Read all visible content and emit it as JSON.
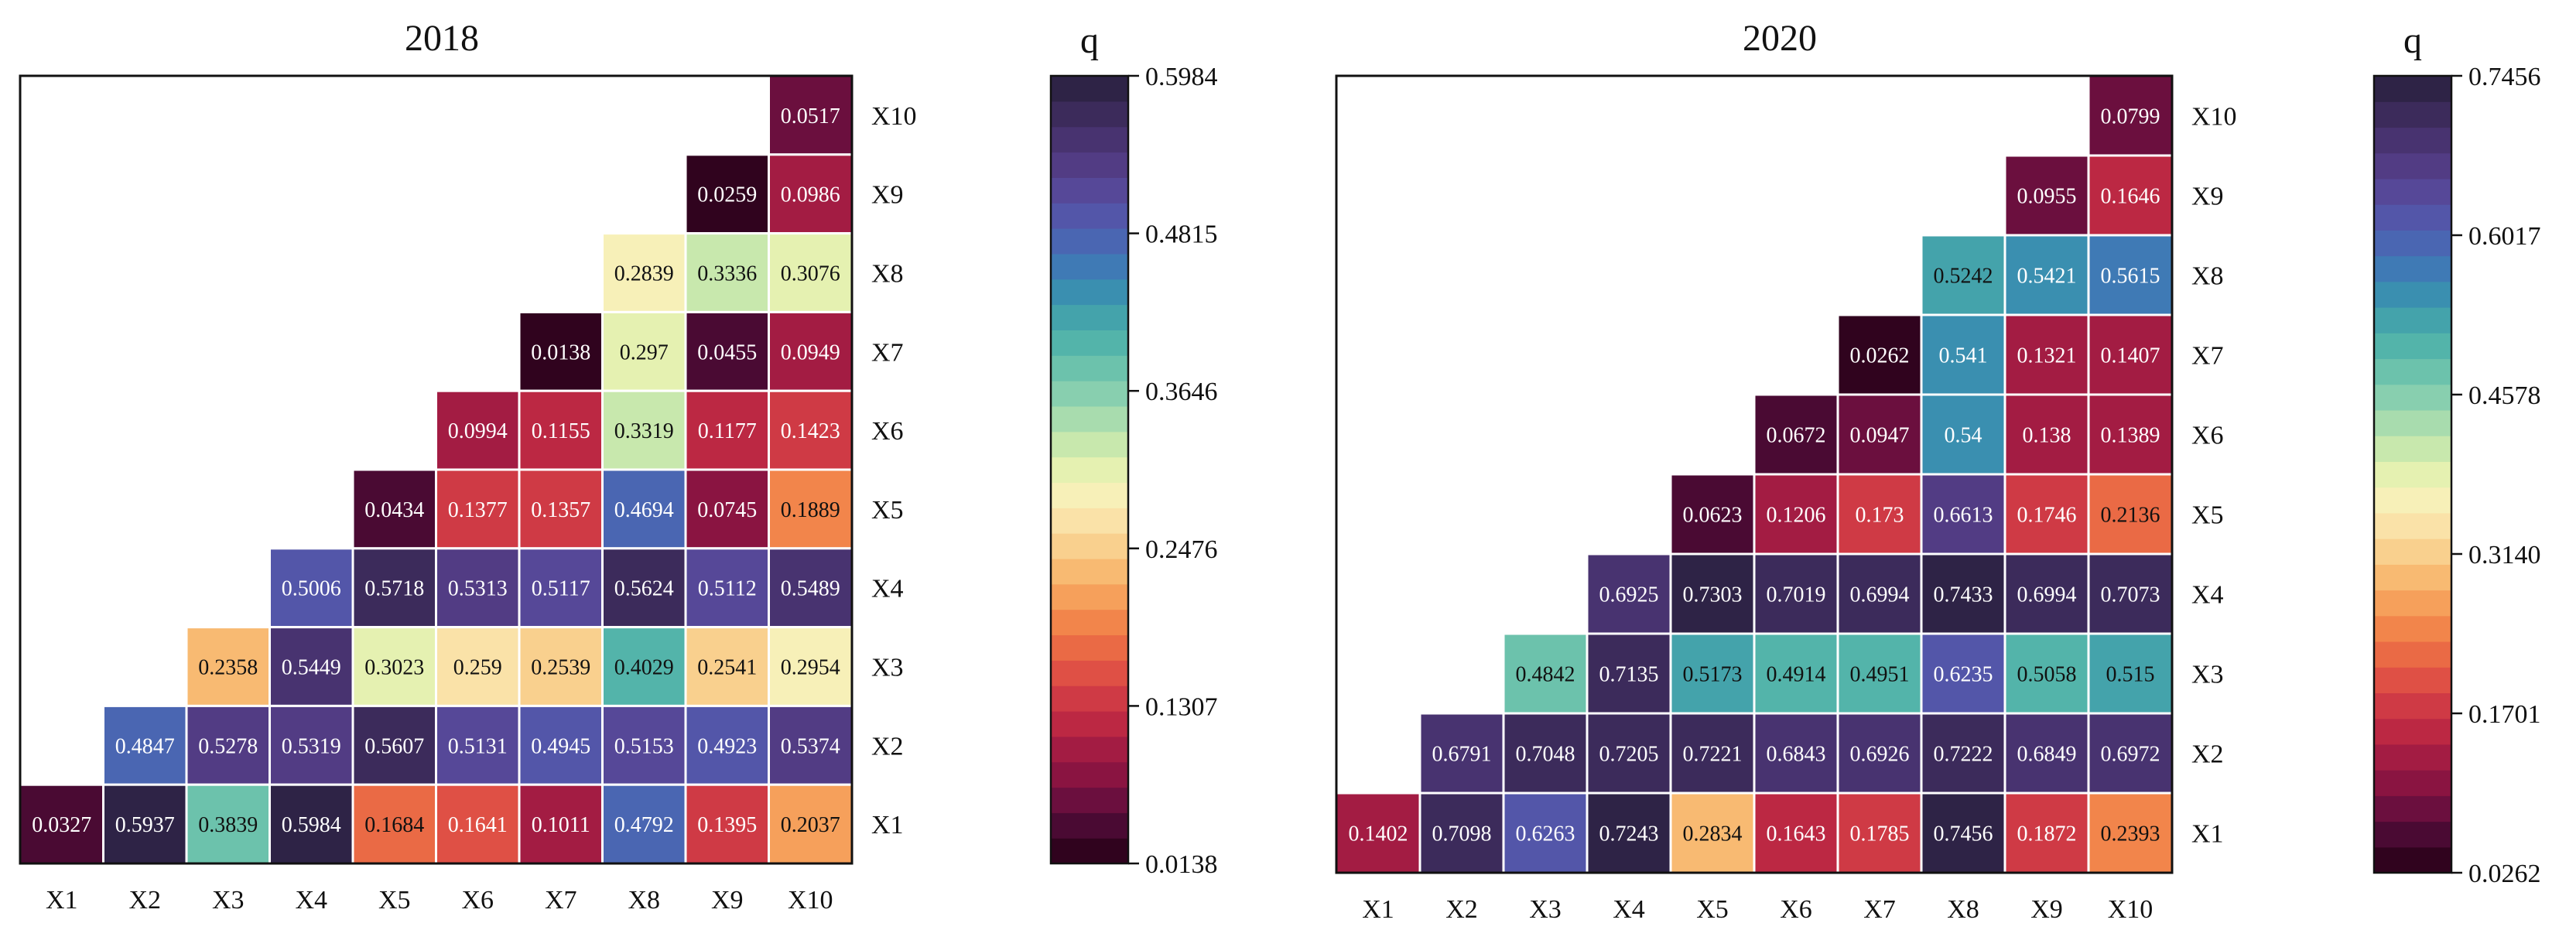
{
  "colormap": [
    "#30031e",
    "#4a0a33",
    "#6b0f3e",
    "#8a1441",
    "#a31c43",
    "#bc2843",
    "#cf3a45",
    "#df5045",
    "#ea6a45",
    "#f2854b",
    "#f6a05b",
    "#f8ba72",
    "#f9d08e",
    "#fae2a8",
    "#f7f0b8",
    "#e5f1b1",
    "#c8e8ad",
    "#a8dcae",
    "#88cfaf",
    "#6cc2ac",
    "#53b4aa",
    "#44a3ab",
    "#3a8fb0",
    "#3f7ab5",
    "#4a66b2",
    "#5356a9",
    "#564898",
    "#523c84",
    "#483370",
    "#3c2b5b",
    "#2e2346"
  ],
  "chart_data": [
    {
      "type": "heatmap",
      "title": "2018",
      "x_labels": [
        "X1",
        "X2",
        "X3",
        "X4",
        "X5",
        "X6",
        "X7",
        "X8",
        "X9",
        "X10"
      ],
      "y_labels": [
        "X10",
        "X9",
        "X8",
        "X7",
        "X6",
        "X5",
        "X4",
        "X3",
        "X2",
        "X1"
      ],
      "colorbar": {
        "label": "q",
        "min": 0.0138,
        "max": 0.5984,
        "ticks": [
          "0.5984",
          "0.4815",
          "0.3646",
          "0.2476",
          "0.1307",
          "0.0138"
        ]
      },
      "rows": [
        [
          "",
          "",
          "",
          "",
          "",
          "",
          "",
          "",
          "",
          "0.0517"
        ],
        [
          "",
          "",
          "",
          "",
          "",
          "",
          "",
          "",
          "0.0259",
          "0.0986"
        ],
        [
          "",
          "",
          "",
          "",
          "",
          "",
          "",
          "0.2839",
          "0.3336",
          "0.3076"
        ],
        [
          "",
          "",
          "",
          "",
          "",
          "",
          "0.0138",
          "0.297",
          "0.0455",
          "0.0949"
        ],
        [
          "",
          "",
          "",
          "",
          "",
          "0.0994",
          "0.1155",
          "0.3319",
          "0.1177",
          "0.1423"
        ],
        [
          "",
          "",
          "",
          "",
          "0.0434",
          "0.1377",
          "0.1357",
          "0.4694",
          "0.0745",
          "0.1889"
        ],
        [
          "",
          "",
          "",
          "0.5006",
          "0.5718",
          "0.5313",
          "0.5117",
          "0.5624",
          "0.5112",
          "0.5489"
        ],
        [
          "",
          "",
          "0.2358",
          "0.5449",
          "0.3023",
          "0.259",
          "0.2539",
          "0.4029",
          "0.2541",
          "0.2954"
        ],
        [
          "",
          "0.4847",
          "0.5278",
          "0.5319",
          "0.5607",
          "0.5131",
          "0.4945",
          "0.5153",
          "0.4923",
          "0.5374"
        ],
        [
          "0.0327",
          "0.5937",
          "0.3839",
          "0.5984",
          "0.1684",
          "0.1641",
          "0.1011",
          "0.4792",
          "0.1395",
          "0.2037"
        ]
      ]
    },
    {
      "type": "heatmap",
      "title": "2020",
      "x_labels": [
        "X1",
        "X2",
        "X3",
        "X4",
        "X5",
        "X6",
        "X7",
        "X8",
        "X9",
        "X10"
      ],
      "y_labels": [
        "X10",
        "X9",
        "X8",
        "X7",
        "X6",
        "X5",
        "X4",
        "X3",
        "X2",
        "X1"
      ],
      "colorbar": {
        "label": "q",
        "min": 0.0262,
        "max": 0.7456,
        "ticks": [
          "0.7456",
          "0.6017",
          "0.4578",
          "0.3140",
          "0.1701",
          "0.0262"
        ]
      },
      "rows": [
        [
          "",
          "",
          "",
          "",
          "",
          "",
          "",
          "",
          "",
          "0.0799"
        ],
        [
          "",
          "",
          "",
          "",
          "",
          "",
          "",
          "",
          "0.0955",
          "0.1646"
        ],
        [
          "",
          "",
          "",
          "",
          "",
          "",
          "",
          "0.5242",
          "0.5421",
          "0.5615"
        ],
        [
          "",
          "",
          "",
          "",
          "",
          "",
          "0.0262",
          "0.541",
          "0.1321",
          "0.1407"
        ],
        [
          "",
          "",
          "",
          "",
          "",
          "0.0672",
          "0.0947",
          "0.54",
          "0.138",
          "0.1389"
        ],
        [
          "",
          "",
          "",
          "",
          "0.0623",
          "0.1206",
          "0.173",
          "0.6613",
          "0.1746",
          "0.2136"
        ],
        [
          "",
          "",
          "",
          "0.6925",
          "0.7303",
          "0.7019",
          "0.6994",
          "0.7433",
          "0.6994",
          "0.7073"
        ],
        [
          "",
          "",
          "0.4842",
          "0.7135",
          "0.5173",
          "0.4914",
          "0.4951",
          "0.6235",
          "0.5058",
          "0.515"
        ],
        [
          "",
          "0.6791",
          "0.7048",
          "0.7205",
          "0.7221",
          "0.6843",
          "0.6926",
          "0.7222",
          "0.6849",
          "0.6972"
        ],
        [
          "0.1402",
          "0.7098",
          "0.6263",
          "0.7243",
          "0.2834",
          "0.1643",
          "0.1785",
          "0.7456",
          "0.1872",
          "0.2393"
        ]
      ]
    }
  ]
}
